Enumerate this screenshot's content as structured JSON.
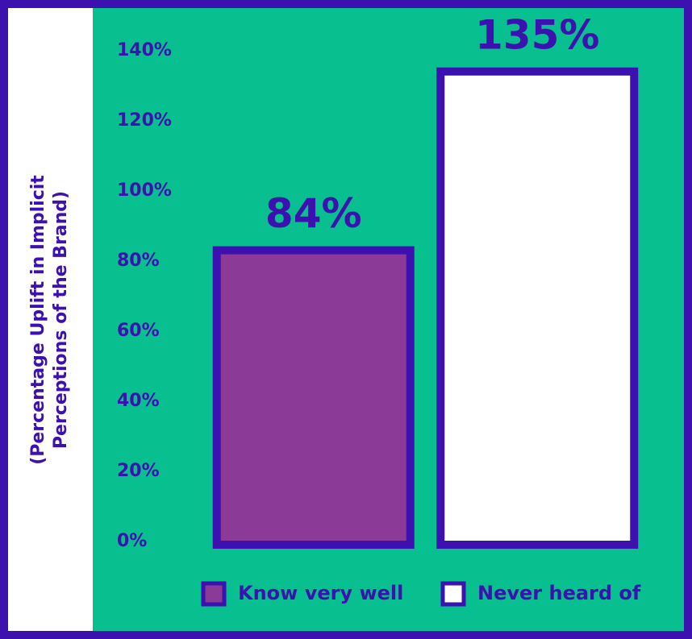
{
  "chart_data": {
    "type": "bar",
    "ylabel": [
      "(Percentage Uplift in Implicit",
      "Perceptions of the Brand)"
    ],
    "categories": [
      null
    ],
    "series": [
      {
        "name": "Know very well",
        "color": "#8b3a98",
        "values": [
          84
        ],
        "value_labels": [
          "84%"
        ]
      },
      {
        "name": "Never heard of",
        "color": "#ffffff",
        "values": [
          135
        ],
        "value_labels": [
          "135%"
        ]
      }
    ],
    "ylim": [
      0,
      140
    ],
    "yticks": [
      {
        "value": 0,
        "label": "0%"
      },
      {
        "value": 20,
        "label": "20%"
      },
      {
        "value": 40,
        "label": "40%"
      },
      {
        "value": 60,
        "label": "60%"
      },
      {
        "value": 80,
        "label": "80%"
      },
      {
        "value": 100,
        "label": "100%"
      },
      {
        "value": 120,
        "label": "120%"
      },
      {
        "value": 140,
        "label": "140%"
      }
    ],
    "grid": false
  }
}
